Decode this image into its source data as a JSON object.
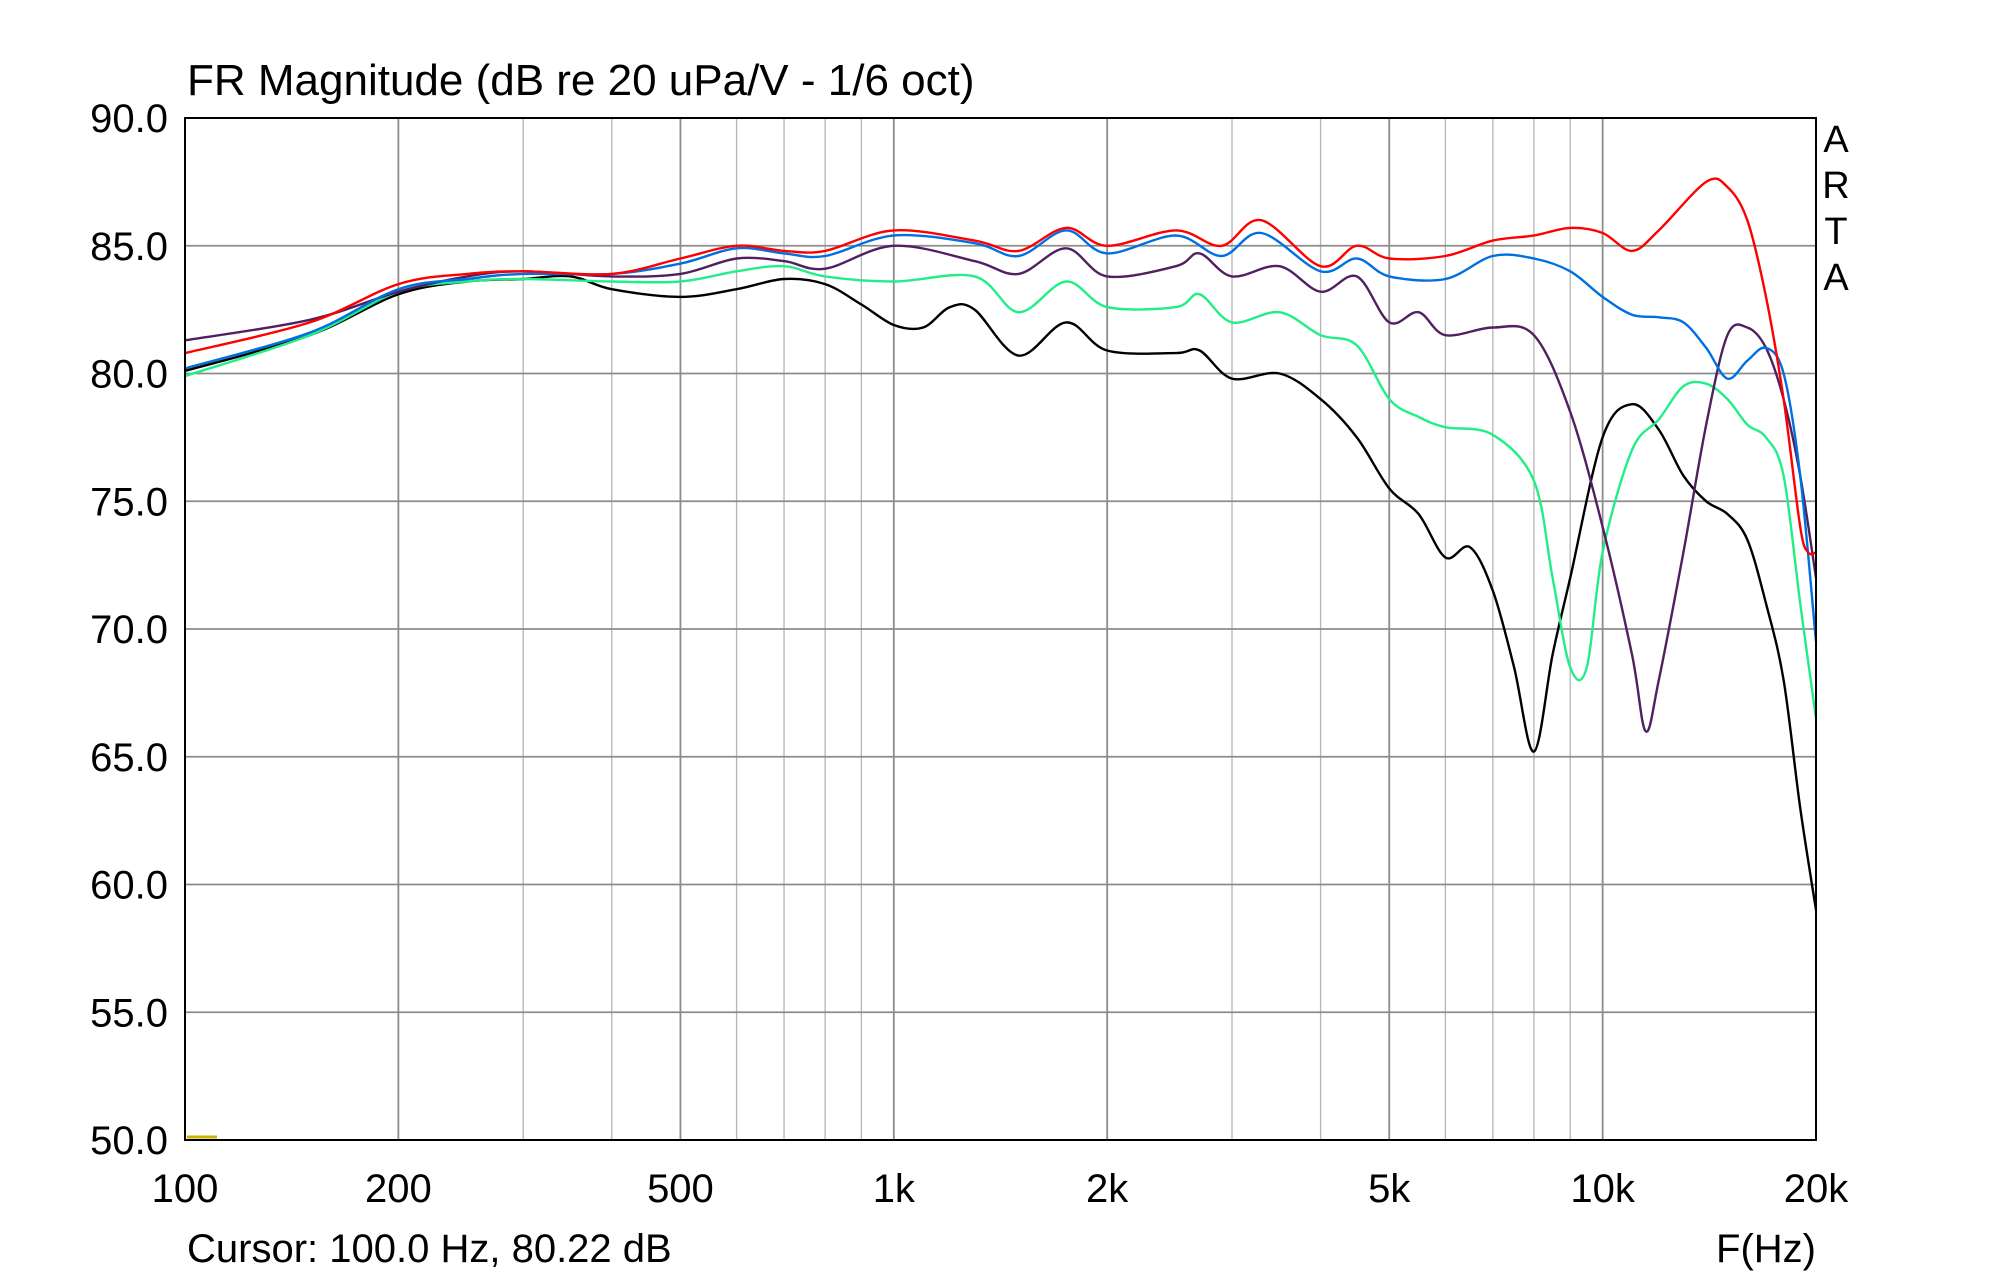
{
  "chart_data": {
    "type": "line",
    "title": "FR Magnitude (dB re 20 uPa/V - 1/6 oct)",
    "xlabel": "F(Hz)",
    "ylabel": "",
    "xscale": "log",
    "xlim": [
      100,
      20000
    ],
    "ylim": [
      50,
      90
    ],
    "grid": true,
    "brand": [
      "A",
      "R",
      "T",
      "A"
    ],
    "cursor_text": "Cursor: 100.0 Hz, 80.22 dB",
    "x_major_ticks": [
      {
        "value": 100,
        "label": "100"
      },
      {
        "value": 200,
        "label": "200"
      },
      {
        "value": 500,
        "label": "500"
      },
      {
        "value": 1000,
        "label": "1k"
      },
      {
        "value": 2000,
        "label": "2k"
      },
      {
        "value": 5000,
        "label": "5k"
      },
      {
        "value": 10000,
        "label": "10k"
      },
      {
        "value": 20000,
        "label": "20k"
      }
    ],
    "x_minor_ticks": [
      300,
      400,
      600,
      700,
      800,
      900,
      3000,
      4000,
      6000,
      7000,
      8000,
      9000
    ],
    "y_ticks": [
      {
        "value": 90,
        "label": "90.0"
      },
      {
        "value": 85,
        "label": "85.0"
      },
      {
        "value": 80,
        "label": "80.0"
      },
      {
        "value": 75,
        "label": "75.0"
      },
      {
        "value": 70,
        "label": "70.0"
      },
      {
        "value": 65,
        "label": "65.0"
      },
      {
        "value": 60,
        "label": "60.0"
      },
      {
        "value": 55,
        "label": "55.0"
      },
      {
        "value": 50,
        "label": "50.0"
      }
    ],
    "series": [
      {
        "color": "#ff0000",
        "points": [
          [
            100,
            80.8
          ],
          [
            150,
            82
          ],
          [
            200,
            83.5
          ],
          [
            250,
            83.9
          ],
          [
            300,
            84
          ],
          [
            400,
            83.9
          ],
          [
            500,
            84.5
          ],
          [
            600,
            85
          ],
          [
            700,
            84.8
          ],
          [
            800,
            84.8
          ],
          [
            1000,
            85.6
          ],
          [
            1300,
            85.2
          ],
          [
            1500,
            84.8
          ],
          [
            1750,
            85.7
          ],
          [
            2000,
            85
          ],
          [
            2500,
            85.6
          ],
          [
            2900,
            85
          ],
          [
            3300,
            86
          ],
          [
            4000,
            84.2
          ],
          [
            4500,
            85
          ],
          [
            5000,
            84.5
          ],
          [
            6000,
            84.6
          ],
          [
            7000,
            85.2
          ],
          [
            8000,
            85.4
          ],
          [
            9000,
            85.7
          ],
          [
            10000,
            85.5
          ],
          [
            11000,
            84.8
          ],
          [
            12000,
            85.6
          ],
          [
            14000,
            87.5
          ],
          [
            15000,
            87.3
          ],
          [
            16000,
            86
          ],
          [
            17000,
            83
          ],
          [
            18000,
            79
          ],
          [
            19000,
            74
          ],
          [
            19500,
            73
          ],
          [
            20000,
            73
          ]
        ]
      },
      {
        "color": "#0070e0",
        "points": [
          [
            100,
            80.2
          ],
          [
            150,
            81.6
          ],
          [
            200,
            83.3
          ],
          [
            250,
            83.7
          ],
          [
            300,
            83.9
          ],
          [
            400,
            83.9
          ],
          [
            500,
            84.3
          ],
          [
            600,
            84.9
          ],
          [
            700,
            84.7
          ],
          [
            800,
            84.6
          ],
          [
            1000,
            85.4
          ],
          [
            1300,
            85.1
          ],
          [
            1500,
            84.6
          ],
          [
            1750,
            85.6
          ],
          [
            2000,
            84.7
          ],
          [
            2500,
            85.4
          ],
          [
            2900,
            84.6
          ],
          [
            3300,
            85.5
          ],
          [
            4000,
            84
          ],
          [
            4500,
            84.5
          ],
          [
            5000,
            83.8
          ],
          [
            6000,
            83.7
          ],
          [
            7000,
            84.6
          ],
          [
            8000,
            84.5
          ],
          [
            9000,
            84
          ],
          [
            10000,
            83
          ],
          [
            11000,
            82.3
          ],
          [
            12000,
            82.2
          ],
          [
            13000,
            82
          ],
          [
            14000,
            81
          ],
          [
            15000,
            79.8
          ],
          [
            16000,
            80.5
          ],
          [
            17000,
            81
          ],
          [
            18000,
            80
          ],
          [
            19000,
            76
          ],
          [
            20000,
            69.5
          ]
        ]
      },
      {
        "color": "#502060",
        "points": [
          [
            100,
            81.3
          ],
          [
            150,
            82.1
          ],
          [
            200,
            83.2
          ],
          [
            250,
            83.8
          ],
          [
            300,
            84
          ],
          [
            400,
            83.8
          ],
          [
            500,
            83.9
          ],
          [
            600,
            84.5
          ],
          [
            700,
            84.4
          ],
          [
            800,
            84.1
          ],
          [
            1000,
            85
          ],
          [
            1300,
            84.4
          ],
          [
            1500,
            83.9
          ],
          [
            1750,
            84.9
          ],
          [
            2000,
            83.8
          ],
          [
            2500,
            84.2
          ],
          [
            2700,
            84.7
          ],
          [
            3000,
            83.8
          ],
          [
            3500,
            84.2
          ],
          [
            4000,
            83.2
          ],
          [
            4500,
            83.8
          ],
          [
            5000,
            82
          ],
          [
            5500,
            82.4
          ],
          [
            6000,
            81.5
          ],
          [
            7000,
            81.8
          ],
          [
            8000,
            81.5
          ],
          [
            9000,
            78.5
          ],
          [
            10000,
            74
          ],
          [
            11000,
            69
          ],
          [
            11500,
            66
          ],
          [
            12000,
            68
          ],
          [
            13000,
            73
          ],
          [
            14000,
            78
          ],
          [
            15000,
            81.5
          ],
          [
            16000,
            81.8
          ],
          [
            17000,
            81
          ],
          [
            18000,
            79
          ],
          [
            19000,
            76
          ],
          [
            20000,
            72
          ]
        ]
      },
      {
        "color": "#22ee88",
        "points": [
          [
            100,
            79.9
          ],
          [
            150,
            81.5
          ],
          [
            200,
            83.2
          ],
          [
            250,
            83.6
          ],
          [
            300,
            83.7
          ],
          [
            400,
            83.6
          ],
          [
            500,
            83.6
          ],
          [
            600,
            84
          ],
          [
            700,
            84.2
          ],
          [
            800,
            83.8
          ],
          [
            1000,
            83.6
          ],
          [
            1300,
            83.8
          ],
          [
            1500,
            82.4
          ],
          [
            1750,
            83.6
          ],
          [
            2000,
            82.6
          ],
          [
            2500,
            82.6
          ],
          [
            2700,
            83.1
          ],
          [
            3000,
            82
          ],
          [
            3500,
            82.4
          ],
          [
            4000,
            81.5
          ],
          [
            4500,
            81.1
          ],
          [
            5000,
            79
          ],
          [
            5500,
            78.3
          ],
          [
            6000,
            77.9
          ],
          [
            7000,
            77.6
          ],
          [
            8000,
            75.8
          ],
          [
            8500,
            72
          ],
          [
            9000,
            68.5
          ],
          [
            9500,
            68.5
          ],
          [
            10000,
            73
          ],
          [
            11000,
            77
          ],
          [
            12000,
            78.2
          ],
          [
            13000,
            79.5
          ],
          [
            14000,
            79.6
          ],
          [
            15000,
            79
          ],
          [
            16000,
            78
          ],
          [
            17000,
            77.5
          ],
          [
            18000,
            76
          ],
          [
            19000,
            71
          ],
          [
            20000,
            66.5
          ]
        ]
      },
      {
        "color": "#000000",
        "points": [
          [
            100,
            80.1
          ],
          [
            150,
            81.5
          ],
          [
            200,
            83.1
          ],
          [
            250,
            83.6
          ],
          [
            300,
            83.7
          ],
          [
            350,
            83.8
          ],
          [
            400,
            83.3
          ],
          [
            500,
            83
          ],
          [
            600,
            83.3
          ],
          [
            700,
            83.7
          ],
          [
            800,
            83.5
          ],
          [
            900,
            82.7
          ],
          [
            1000,
            81.9
          ],
          [
            1100,
            81.8
          ],
          [
            1200,
            82.6
          ],
          [
            1300,
            82.5
          ],
          [
            1500,
            80.7
          ],
          [
            1750,
            82
          ],
          [
            2000,
            80.9
          ],
          [
            2500,
            80.8
          ],
          [
            2700,
            80.9
          ],
          [
            3000,
            79.8
          ],
          [
            3500,
            80
          ],
          [
            4000,
            79
          ],
          [
            4500,
            77.5
          ],
          [
            5000,
            75.5
          ],
          [
            5500,
            74.5
          ],
          [
            6000,
            72.8
          ],
          [
            6500,
            73.2
          ],
          [
            7000,
            71.5
          ],
          [
            7500,
            68.5
          ],
          [
            8000,
            65.2
          ],
          [
            8500,
            69
          ],
          [
            9000,
            72
          ],
          [
            10000,
            77.5
          ],
          [
            11000,
            78.8
          ],
          [
            12000,
            77.8
          ],
          [
            13000,
            76
          ],
          [
            14000,
            75
          ],
          [
            15000,
            74.5
          ],
          [
            16000,
            73.5
          ],
          [
            17000,
            71
          ],
          [
            18000,
            68
          ],
          [
            19000,
            63
          ],
          [
            20000,
            59
          ]
        ]
      }
    ]
  }
}
